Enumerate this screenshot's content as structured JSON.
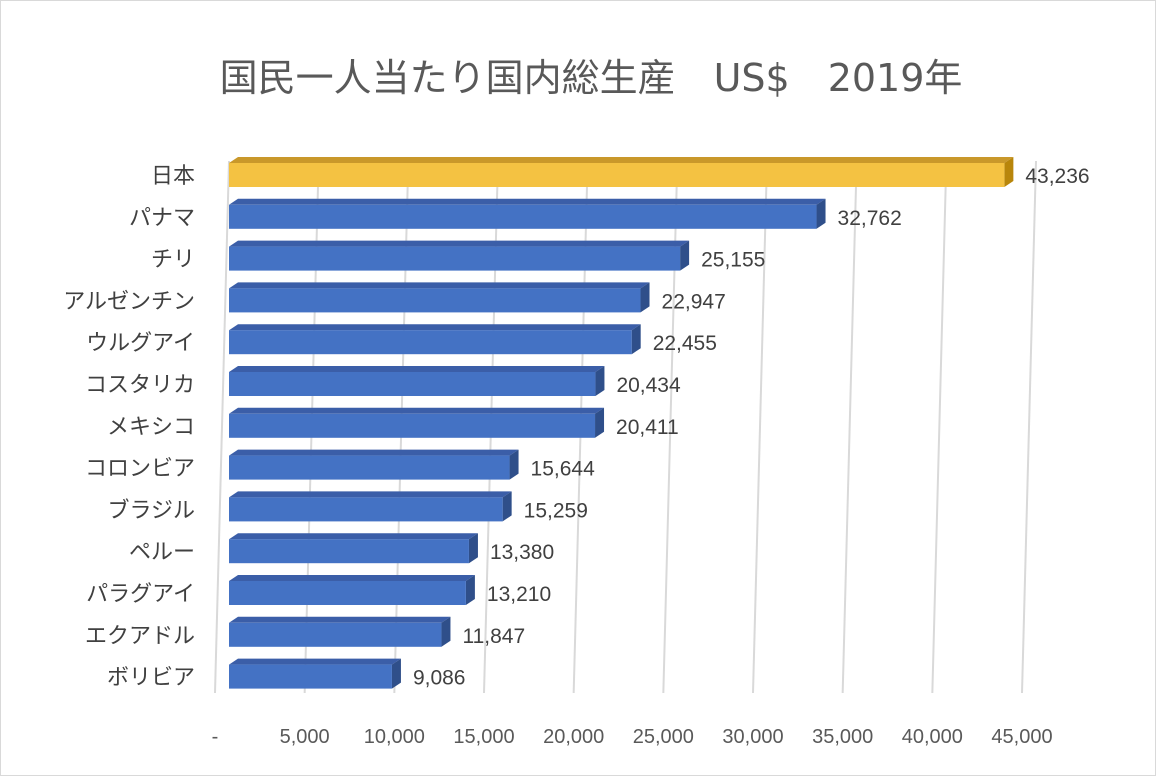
{
  "chart_data": {
    "type": "bar",
    "orientation": "horizontal",
    "title": "国民一人当たり国内総生産　US$　2019年",
    "categories": [
      "日本",
      "パナマ",
      "チリ",
      "アルゼンチン",
      "ウルグアイ",
      "コスタリカ",
      "メキシコ",
      "コロンビア",
      "ブラジル",
      "ペルー",
      "パラグアイ",
      "エクアドル",
      "ボリビア"
    ],
    "values": [
      43236,
      32762,
      25155,
      22947,
      22455,
      20434,
      20411,
      15644,
      15259,
      13380,
      13210,
      11847,
      9086
    ],
    "value_labels": [
      "43,236",
      "32,762",
      "25,155",
      "22,947",
      "22,455",
      "20,434",
      "20,411",
      "15,644",
      "15,259",
      "13,380",
      "13,210",
      "11,847",
      "9,086"
    ],
    "xlim": [
      0,
      45000
    ],
    "x_ticks": [
      0,
      5000,
      10000,
      15000,
      20000,
      25000,
      30000,
      35000,
      40000,
      45000
    ],
    "x_tick_labels": [
      "-",
      "5,000",
      "10,000",
      "15,000",
      "20,000",
      "25,000",
      "30,000",
      "35,000",
      "40,000",
      "45,000"
    ],
    "grid": true,
    "legend": "none",
    "style": "3d-bar",
    "colors": {
      "default_bar": "#4472c4",
      "default_bar_side": "#2f4f8a",
      "default_bar_top": "#3b5ea8",
      "highlight_bar": "#f4c242",
      "highlight_bar_side": "#b8860b",
      "highlight_bar_top": "#c9982a"
    },
    "highlight_index": 0
  }
}
